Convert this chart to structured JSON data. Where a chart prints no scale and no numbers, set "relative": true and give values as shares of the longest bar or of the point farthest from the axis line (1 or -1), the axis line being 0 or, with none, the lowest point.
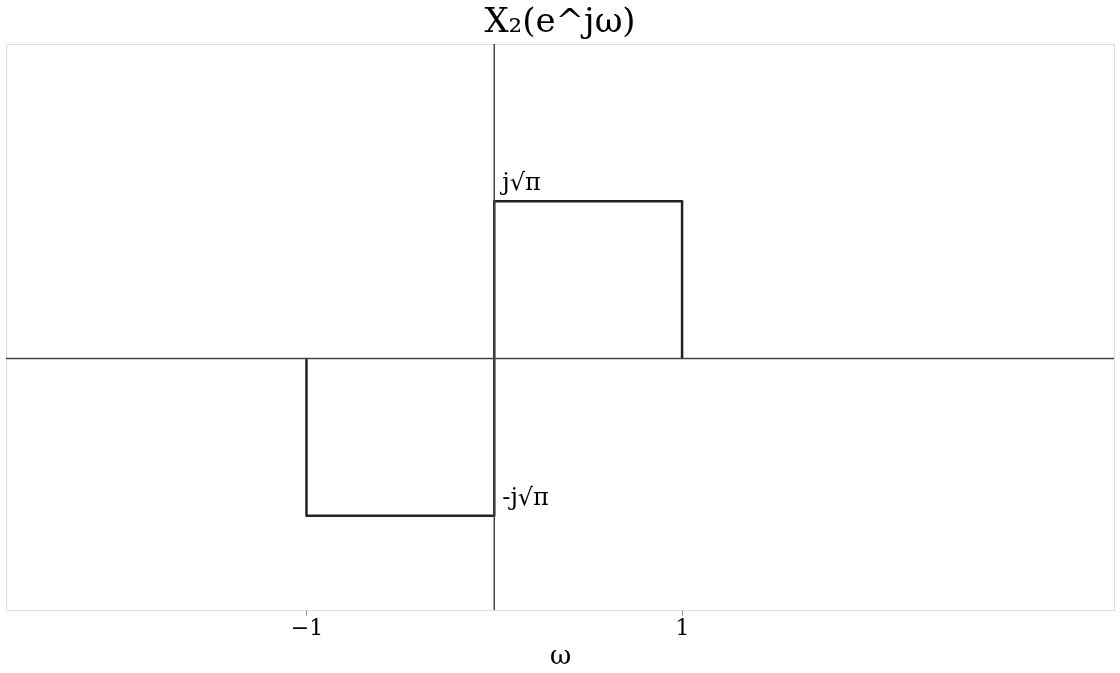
{
  "chart_data": {
    "type": "line",
    "title": "X₂(e^jω)",
    "xlabel": "ω",
    "relative": true,
    "x": [
      -1,
      -1,
      0,
      0,
      1,
      1
    ],
    "values": [
      0,
      -1,
      -1,
      1,
      1,
      0
    ],
    "color": "#222222",
    "xlim": [
      -2.6,
      3.3
    ],
    "xticks": [
      -1,
      1
    ],
    "annotations": [
      {
        "text": "j√π",
        "x": 0,
        "y": 1
      },
      {
        "text": "-j√π",
        "x": 0,
        "y": -1
      }
    ],
    "grid": false
  }
}
